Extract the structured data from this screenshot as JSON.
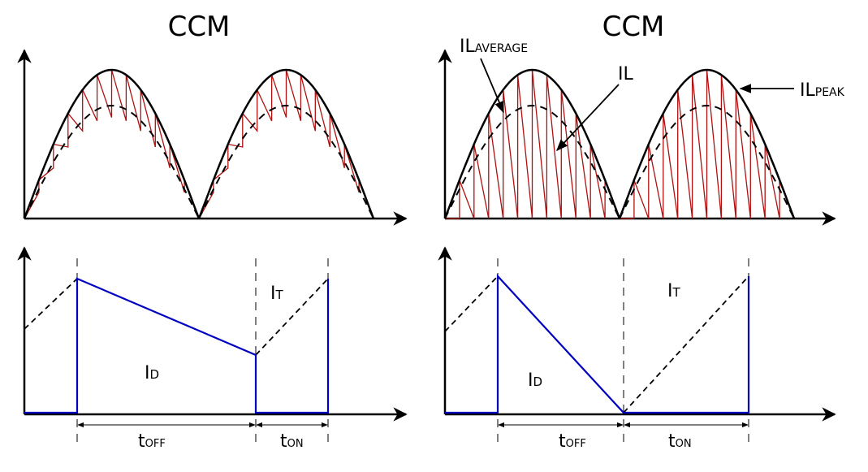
{
  "left_panel": {
    "title": "CCM",
    "diode_current": {
      "base": "I",
      "sub": "D"
    },
    "switch_current": {
      "base": "I",
      "sub": "T"
    },
    "t_off": {
      "base": "t",
      "sub": "OFF"
    },
    "t_on": {
      "base": "t",
      "sub": "ON"
    }
  },
  "right_panel": {
    "title": "CCM",
    "il_average": {
      "base": "IL",
      "sub": "AVERAGE"
    },
    "il": {
      "base": "IL",
      "sub": ""
    },
    "il_peak": {
      "base": "IL",
      "sub": "PEAK"
    },
    "diode_current": {
      "base": "I",
      "sub": "D"
    },
    "switch_current": {
      "base": "I",
      "sub": "T"
    },
    "t_off": {
      "base": "t",
      "sub": "OFF"
    },
    "t_on": {
      "base": "t",
      "sub": "ON"
    }
  },
  "colors": {
    "inductor_current": "#b01010",
    "diode_switch_current": "#0000c0",
    "envelope": "#000000"
  }
}
